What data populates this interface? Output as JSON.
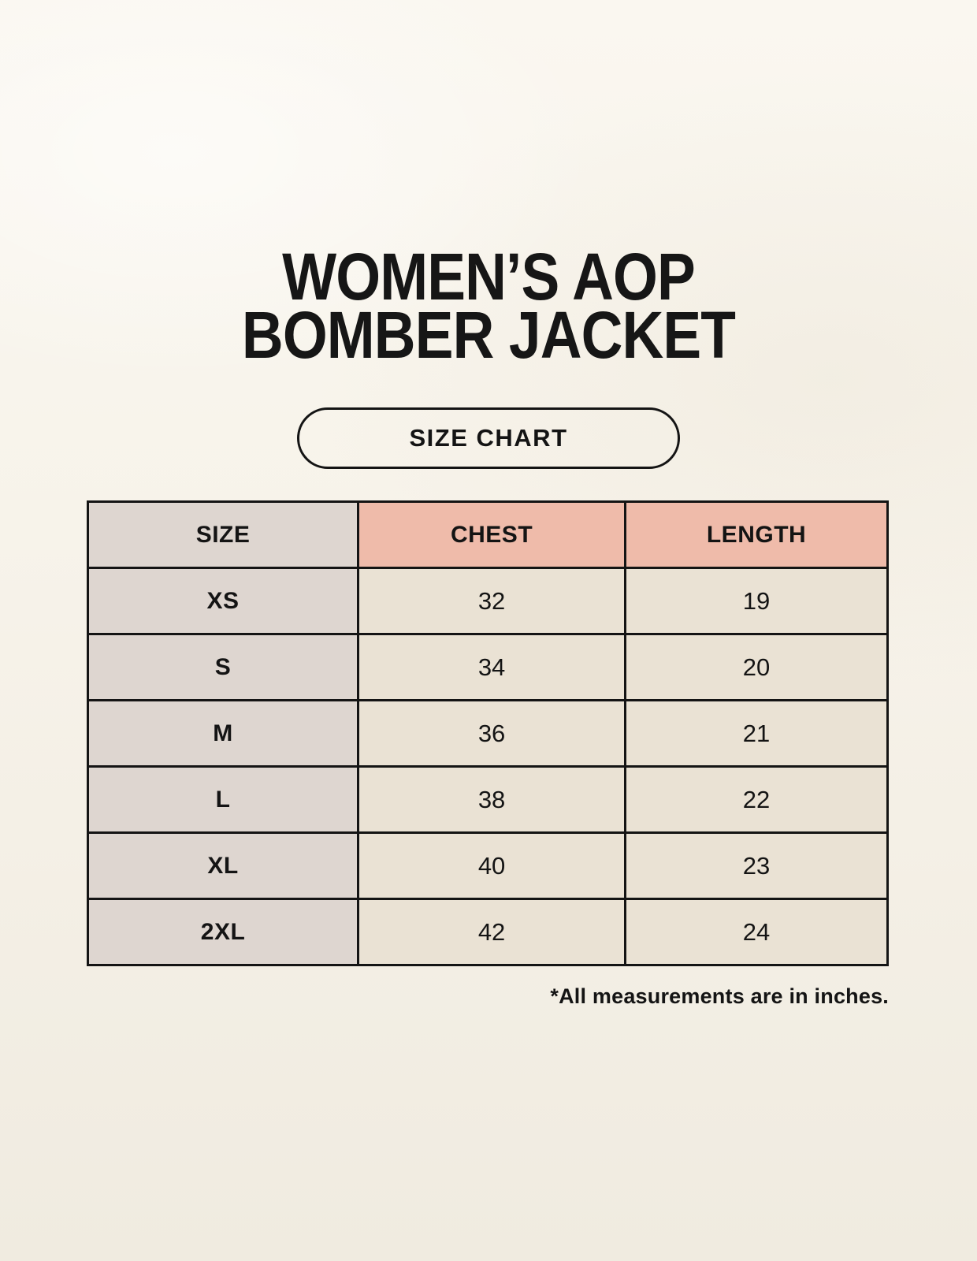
{
  "page": {
    "title_line1": "WOMEN’S AOP",
    "title_line2": "BOMBER JACKET",
    "size_chart_label": "SIZE CHART",
    "footnote": "*All measurements are in inches."
  },
  "colors": {
    "background": "#f7f3ea",
    "header_size_bg": "#ded6d0",
    "header_measure_bg": "#efbbaa",
    "row_label_bg": "#ded6d0",
    "row_value_bg": "#eae2d4",
    "border": "#141414",
    "text": "#141414"
  },
  "chart_data": {
    "type": "table",
    "title": "WOMEN’S AOP BOMBER JACKET — SIZE CHART",
    "columns": [
      "SIZE",
      "CHEST",
      "LENGTH"
    ],
    "rows": [
      [
        "XS",
        "32",
        "19"
      ],
      [
        "S",
        "34",
        "20"
      ],
      [
        "M",
        "36",
        "21"
      ],
      [
        "L",
        "38",
        "22"
      ],
      [
        "XL",
        "40",
        "23"
      ],
      [
        "2XL",
        "42",
        "24"
      ]
    ],
    "units": "inches",
    "note": "*All measurements are in inches."
  }
}
